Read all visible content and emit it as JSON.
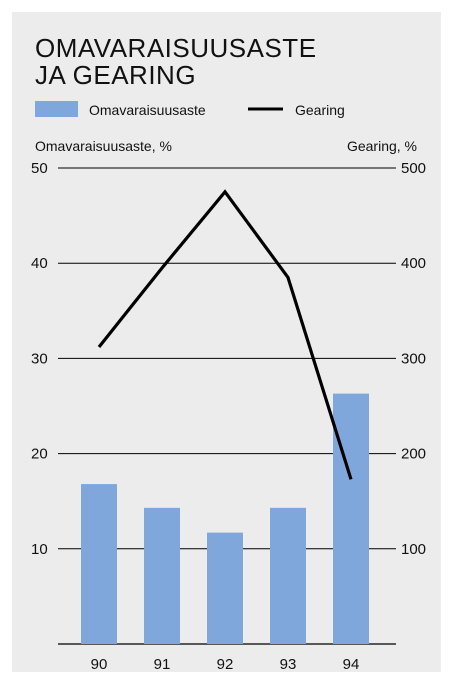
{
  "chart_data": {
    "type": "bar+line",
    "title_lines": [
      "OMAVARAISUUSASTE",
      "JA GEARING"
    ],
    "categories": [
      "90",
      "91",
      "92",
      "93",
      "94"
    ],
    "series": [
      {
        "name": "Omavaraisuusaste",
        "kind": "bar",
        "axis": "left",
        "color": "#7fa7db",
        "values": [
          16.8,
          14.3,
          11.7,
          14.3,
          26.3
        ]
      },
      {
        "name": "Gearing",
        "kind": "line",
        "axis": "right",
        "color": "#000000",
        "values": [
          312,
          395,
          475,
          385,
          173
        ]
      }
    ],
    "left_axis": {
      "label": "Omavaraisuusaste, %",
      "min": 0,
      "max": 50,
      "ticks": [
        "10",
        "20",
        "30",
        "40",
        "50"
      ]
    },
    "right_axis": {
      "label": "Gearing, %",
      "min": 0,
      "max": 500,
      "ticks": [
        "100",
        "200",
        "300",
        "400",
        "500"
      ]
    },
    "legend": {
      "placement": "top",
      "items": [
        "Omavaraisuusaste",
        "Gearing"
      ]
    },
    "grid": true
  }
}
